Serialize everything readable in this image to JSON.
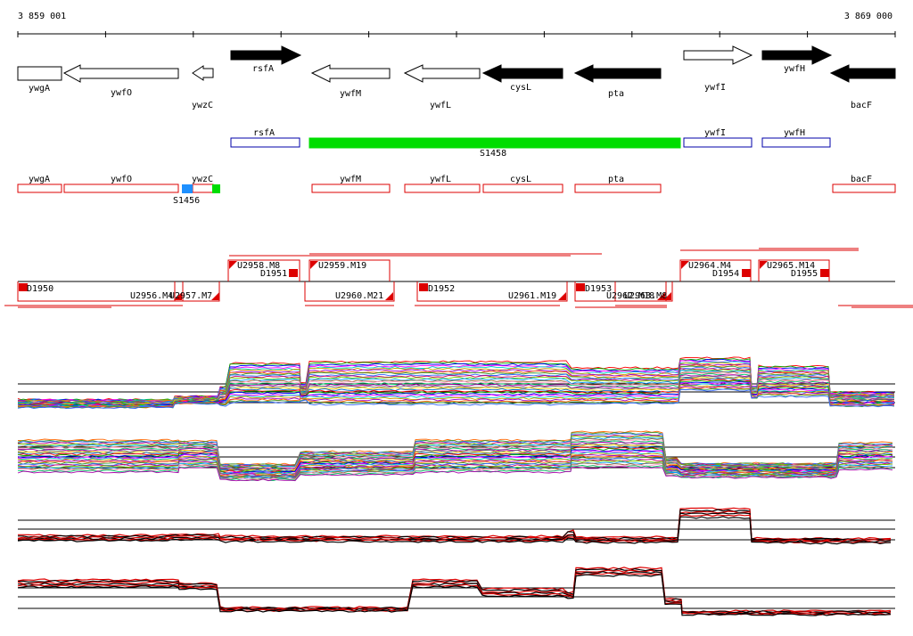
{
  "coordinates": {
    "start": "3 859 001",
    "end": "3 869 000"
  },
  "genes": [
    {
      "name": "ywgA",
      "strand": "-",
      "filled": false
    },
    {
      "name": "ywfO",
      "strand": "-",
      "filled": false
    },
    {
      "name": "ywzC",
      "strand": "-",
      "filled": false
    },
    {
      "name": "rsfA",
      "strand": "+",
      "filled": true
    },
    {
      "name": "ywfM",
      "strand": "-",
      "filled": false
    },
    {
      "name": "ywfL",
      "strand": "-",
      "filled": false
    },
    {
      "name": "cysL",
      "strand": "-",
      "filled": true
    },
    {
      "name": "pta",
      "strand": "-",
      "filled": true
    },
    {
      "name": "ywfI",
      "strand": "+",
      "filled": false
    },
    {
      "name": "ywfH",
      "strand": "+",
      "filled": true
    },
    {
      "name": "bacF",
      "strand": "-",
      "filled": true
    }
  ],
  "forward_features": [
    {
      "name": "rsfA",
      "color": "#0000aa"
    },
    {
      "name": "S1458",
      "color": "#00dd00"
    },
    {
      "name": "ywfI",
      "color": "#0000aa"
    },
    {
      "name": "ywfH",
      "color": "#0000aa"
    }
  ],
  "reverse_features": [
    {
      "name": "ywgA"
    },
    {
      "name": "ywfO"
    },
    {
      "name": "ywzC"
    },
    {
      "name": "S1456"
    },
    {
      "name": "ywfM"
    },
    {
      "name": "ywfL"
    },
    {
      "name": "cysL"
    },
    {
      "name": "pta"
    },
    {
      "name": "bacF"
    }
  ],
  "segments_top": [
    "U2958.M8",
    "D1951",
    "U2959.M19",
    "U2964.M4",
    "D1954",
    "U2965.M14",
    "D1955"
  ],
  "segments_bottom": [
    "D1950",
    "U2956.M4",
    "U2957.M7",
    "U2960.M21",
    "D1952",
    "U2961.M19",
    "D1953",
    "U2962.M18",
    "U2963.M8"
  ],
  "colors": {
    "feature_red": "#dd0000",
    "forward_blue": "#0000aa",
    "srna_green": "#00dd00",
    "srna_blue": "#1e90ff",
    "gene_black": "#000000"
  }
}
